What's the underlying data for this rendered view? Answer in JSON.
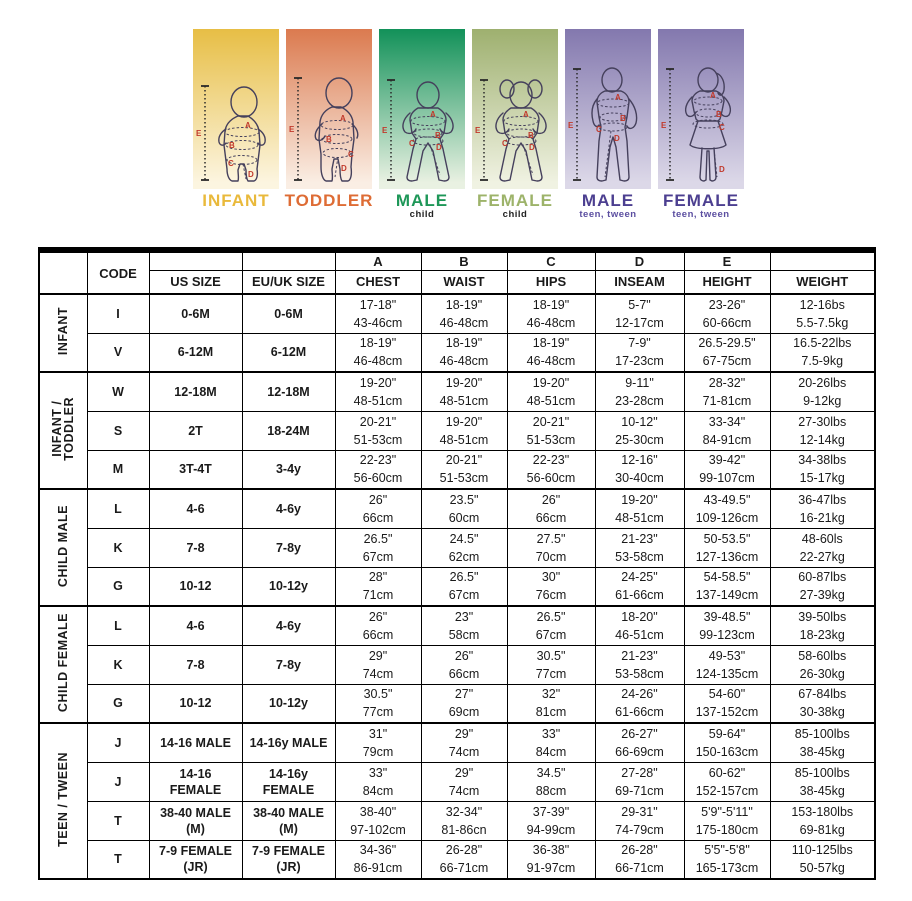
{
  "figures": {
    "markers": [
      "A",
      "B",
      "C",
      "D",
      "E"
    ],
    "panels": [
      {
        "title": "INFANT",
        "subtitle": "",
        "title_color": "#e9b93b",
        "subtitle_color": "#222222",
        "gradient_top": "#e7be45",
        "gradient_bottom": "#fcf5e0"
      },
      {
        "title": "TODDLER",
        "subtitle": "",
        "title_color": "#de6c35",
        "subtitle_color": "#222222",
        "gradient_top": "#db7a4f",
        "gradient_bottom": "#faeee4"
      },
      {
        "title": "MALE",
        "subtitle": "child",
        "title_color": "#1e9758",
        "subtitle_color": "#222222",
        "gradient_top": "#129159",
        "gradient_bottom": "#e9f1e2"
      },
      {
        "title": "FEMALE",
        "subtitle": "child",
        "title_color": "#9db36a",
        "subtitle_color": "#222222",
        "gradient_top": "#9eb06f",
        "gradient_bottom": "#f0f2e2"
      },
      {
        "title": "MALE",
        "subtitle": "teen, tween",
        "title_color": "#4c3f90",
        "subtitle_color": "#5b4ea0",
        "gradient_top": "#8378ae",
        "gradient_bottom": "#dcd8e8"
      },
      {
        "title": "FEMALE",
        "subtitle": "teen, tween",
        "title_color": "#4c3f90",
        "subtitle_color": "#5b4ea0",
        "gradient_top": "#8378ae",
        "gradient_bottom": "#dcd8e8"
      }
    ]
  },
  "table": {
    "letter_headers": [
      "A",
      "B",
      "C",
      "D",
      "E"
    ],
    "code_header": "CODE",
    "column_headers": [
      "US SIZE",
      "EU/UK SIZE",
      "CHEST",
      "WAIST",
      "HIPS",
      "INSEAM",
      "HEIGHT",
      "WEIGHT"
    ],
    "groups": [
      {
        "label": "INFANT",
        "rows": [
          {
            "code": "I",
            "us": [
              "0-6M"
            ],
            "eu": [
              "0-6M"
            ],
            "cells": [
              [
                "17-18\"",
                "43-46cm"
              ],
              [
                "18-19\"",
                "46-48cm"
              ],
              [
                "18-19\"",
                "46-48cm"
              ],
              [
                "5-7\"",
                "12-17cm"
              ],
              [
                "23-26\"",
                "60-66cm"
              ],
              [
                "12-16bs",
                "5.5-7.5kg"
              ]
            ]
          },
          {
            "code": "V",
            "us": [
              "6-12M"
            ],
            "eu": [
              "6-12M"
            ],
            "cells": [
              [
                "18-19\"",
                "46-48cm"
              ],
              [
                "18-19\"",
                "46-48cm"
              ],
              [
                "18-19\"",
                "46-48cm"
              ],
              [
                "7-9\"",
                "17-23cm"
              ],
              [
                "26.5-29.5\"",
                "67-75cm"
              ],
              [
                "16.5-22lbs",
                "7.5-9kg"
              ]
            ]
          }
        ]
      },
      {
        "label": "INFANT /\nTODDLER",
        "rows": [
          {
            "code": "W",
            "us": [
              "12-18M"
            ],
            "eu": [
              "12-18M"
            ],
            "cells": [
              [
                "19-20\"",
                "48-51cm"
              ],
              [
                "19-20\"",
                "48-51cm"
              ],
              [
                "19-20\"",
                "48-51cm"
              ],
              [
                "9-11\"",
                "23-28cm"
              ],
              [
                "28-32\"",
                "71-81cm"
              ],
              [
                "20-26lbs",
                "9-12kg"
              ]
            ]
          },
          {
            "code": "S",
            "us": [
              "2T"
            ],
            "eu": [
              "18-24M"
            ],
            "cells": [
              [
                "20-21\"",
                "51-53cm"
              ],
              [
                "19-20\"",
                "48-51cm"
              ],
              [
                "20-21\"",
                "51-53cm"
              ],
              [
                "10-12\"",
                "25-30cm"
              ],
              [
                "33-34\"",
                "84-91cm"
              ],
              [
                "27-30lbs",
                "12-14kg"
              ]
            ]
          },
          {
            "code": "M",
            "us": [
              "3T-4T"
            ],
            "eu": [
              "3-4y"
            ],
            "cells": [
              [
                "22-23\"",
                "56-60cm"
              ],
              [
                "20-21\"",
                "51-53cm"
              ],
              [
                "22-23\"",
                "56-60cm"
              ],
              [
                "12-16\"",
                "30-40cm"
              ],
              [
                "39-42\"",
                "99-107cm"
              ],
              [
                "34-38lbs",
                "15-17kg"
              ]
            ]
          }
        ]
      },
      {
        "label": "CHILD MALE",
        "rows": [
          {
            "code": "L",
            "us": [
              "4-6"
            ],
            "eu": [
              "4-6y"
            ],
            "cells": [
              [
                "26\"",
                "66cm"
              ],
              [
                "23.5\"",
                "60cm"
              ],
              [
                "26\"",
                "66cm"
              ],
              [
                "19-20\"",
                "48-51cm"
              ],
              [
                "43-49.5\"",
                "109-126cm"
              ],
              [
                "36-47lbs",
                "16-21kg"
              ]
            ]
          },
          {
            "code": "K",
            "us": [
              "7-8"
            ],
            "eu": [
              "7-8y"
            ],
            "cells": [
              [
                "26.5\"",
                "67cm"
              ],
              [
                "24.5\"",
                "62cm"
              ],
              [
                "27.5\"",
                "70cm"
              ],
              [
                "21-23\"",
                "53-58cm"
              ],
              [
                "50-53.5\"",
                "127-136cm"
              ],
              [
                "48-60ls",
                "22-27kg"
              ]
            ]
          },
          {
            "code": "G",
            "us": [
              "10-12"
            ],
            "eu": [
              "10-12y"
            ],
            "cells": [
              [
                "28\"",
                "71cm"
              ],
              [
                "26.5\"",
                "67cm"
              ],
              [
                "30\"",
                "76cm"
              ],
              [
                "24-25\"",
                "61-66cm"
              ],
              [
                "54-58.5\"",
                "137-149cm"
              ],
              [
                "60-87lbs",
                "27-39kg"
              ]
            ]
          }
        ]
      },
      {
        "label": "CHILD FEMALE",
        "rows": [
          {
            "code": "L",
            "us": [
              "4-6"
            ],
            "eu": [
              "4-6y"
            ],
            "cells": [
              [
                "26\"",
                "66cm"
              ],
              [
                "23\"",
                "58cm"
              ],
              [
                "26.5\"",
                "67cm"
              ],
              [
                "18-20\"",
                "46-51cm"
              ],
              [
                "39-48.5\"",
                "99-123cm"
              ],
              [
                "39-50lbs",
                "18-23kg"
              ]
            ]
          },
          {
            "code": "K",
            "us": [
              "7-8"
            ],
            "eu": [
              "7-8y"
            ],
            "cells": [
              [
                "29\"",
                "74cm"
              ],
              [
                "26\"",
                "66cm"
              ],
              [
                "30.5\"",
                "77cm"
              ],
              [
                "21-23\"",
                "53-58cm"
              ],
              [
                "49-53\"",
                "124-135cm"
              ],
              [
                "58-60lbs",
                "26-30kg"
              ]
            ]
          },
          {
            "code": "G",
            "us": [
              "10-12"
            ],
            "eu": [
              "10-12y"
            ],
            "cells": [
              [
                "30.5\"",
                "77cm"
              ],
              [
                "27\"",
                "69cm"
              ],
              [
                "32\"",
                "81cm"
              ],
              [
                "24-26\"",
                "61-66cm"
              ],
              [
                "54-60\"",
                "137-152cm"
              ],
              [
                "67-84lbs",
                "30-38kg"
              ]
            ]
          }
        ]
      },
      {
        "label": "TEEN / TWEEN",
        "rows": [
          {
            "code": "J",
            "us": [
              "14-16 MALE"
            ],
            "eu": [
              "14-16y MALE"
            ],
            "cells": [
              [
                "31\"",
                "79cm"
              ],
              [
                "29\"",
                "74cm"
              ],
              [
                "33\"",
                "84cm"
              ],
              [
                "26-27\"",
                "66-69cm"
              ],
              [
                "59-64\"",
                "150-163cm"
              ],
              [
                "85-100lbs",
                "38-45kg"
              ]
            ]
          },
          {
            "code": "J",
            "us": [
              "14-16",
              "FEMALE"
            ],
            "eu": [
              "14-16y",
              "FEMALE"
            ],
            "cells": [
              [
                "33\"",
                "84cm"
              ],
              [
                "29\"",
                "74cm"
              ],
              [
                "34.5\"",
                "88cm"
              ],
              [
                "27-28\"",
                "69-71cm"
              ],
              [
                "60-62\"",
                "152-157cm"
              ],
              [
                "85-100lbs",
                "38-45kg"
              ]
            ]
          },
          {
            "code": "T",
            "us": [
              "38-40 MALE",
              "(M)"
            ],
            "eu": [
              "38-40 MALE",
              "(M)"
            ],
            "cells": [
              [
                "38-40\"",
                "97-102cm"
              ],
              [
                "32-34\"",
                "81-86cn"
              ],
              [
                "37-39\"",
                "94-99cm"
              ],
              [
                "29-31\"",
                "74-79cm"
              ],
              [
                "5'9\"-5'11\"",
                "175-180cm"
              ],
              [
                "153-180lbs",
                "69-81kg"
              ]
            ]
          },
          {
            "code": "T",
            "us": [
              "7-9 FEMALE",
              "(JR)"
            ],
            "eu": [
              "7-9 FEMALE",
              "(JR)"
            ],
            "cells": [
              [
                "34-36\"",
                "86-91cm"
              ],
              [
                "26-28\"",
                "66-71cm"
              ],
              [
                "36-38\"",
                "91-97cm"
              ],
              [
                "26-28\"",
                "66-71cm"
              ],
              [
                "5'5\"-5'8\"",
                "165-173cm"
              ],
              [
                "110-125lbs",
                "50-57kg"
              ]
            ]
          }
        ]
      }
    ]
  }
}
